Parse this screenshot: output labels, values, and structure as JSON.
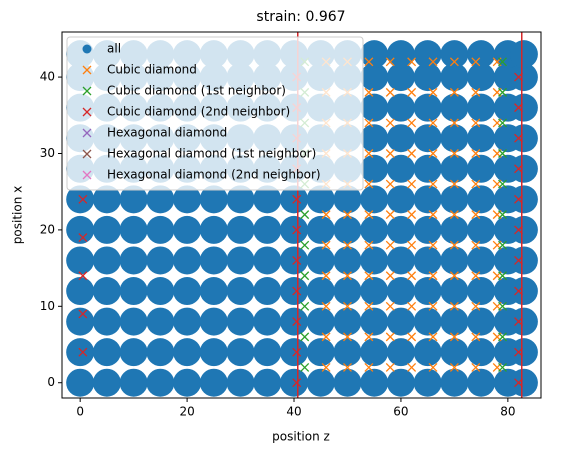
{
  "chart_data": {
    "type": "scatter",
    "title": "strain: 0.967",
    "x_label": "position z",
    "y_label": "position x",
    "xlim": [
      -3.4,
      86.2
    ],
    "ylim": [
      -2.0,
      45.9
    ],
    "xticks": [
      0,
      20,
      40,
      60,
      80
    ],
    "yticks": [
      0,
      10,
      20,
      30,
      40
    ],
    "legend": "upper left",
    "vlines": [
      40.7,
      82.6
    ],
    "vline_color": "#d62728",
    "series": [
      {
        "name": "all",
        "color": "#1f77b4",
        "marker": "o",
        "x": [
          0,
          5,
          10,
          15,
          20,
          25,
          30,
          35,
          40,
          45,
          50,
          55,
          60,
          65,
          70,
          75,
          80,
          83,
          0,
          5,
          10,
          15,
          20,
          25,
          30,
          35,
          40,
          45,
          50,
          55,
          60,
          65,
          70,
          75,
          80,
          83,
          0,
          5,
          10,
          15,
          20,
          25,
          30,
          35,
          40,
          45,
          50,
          55,
          60,
          65,
          70,
          75,
          80,
          83,
          0,
          5,
          10,
          15,
          20,
          25,
          30,
          35,
          40,
          45,
          50,
          55,
          60,
          65,
          70,
          75,
          80,
          83,
          0,
          5,
          10,
          15,
          20,
          25,
          30,
          35,
          40,
          45,
          50,
          55,
          60,
          65,
          70,
          75,
          80,
          83,
          0,
          5,
          10,
          15,
          20,
          25,
          30,
          35,
          40,
          45,
          50,
          55,
          60,
          65,
          70,
          75,
          80,
          83,
          0,
          5,
          10,
          15,
          20,
          25,
          30,
          35,
          40,
          45,
          50,
          55,
          60,
          65,
          70,
          75,
          80,
          83,
          0,
          5,
          10,
          15,
          20,
          25,
          30,
          35,
          40,
          45,
          50,
          55,
          60,
          65,
          70,
          75,
          80,
          83,
          0,
          5,
          10,
          15,
          20,
          25,
          30,
          35,
          40,
          45,
          50,
          55,
          60,
          65,
          70,
          75,
          80,
          83,
          0,
          5,
          10,
          15,
          20,
          25,
          30,
          35,
          40,
          45,
          50,
          55,
          60,
          65,
          70,
          75,
          80,
          83,
          0,
          5,
          10,
          15,
          20,
          25,
          30,
          35,
          40,
          45,
          50,
          55,
          60,
          65,
          70,
          75,
          80,
          83,
          0,
          5,
          10,
          15,
          20,
          25,
          30,
          35,
          40,
          45,
          50,
          55,
          60,
          65,
          70,
          75,
          80,
          83
        ],
        "y": [
          0,
          0,
          0,
          0,
          0,
          0,
          0,
          0,
          0,
          0,
          0,
          0,
          0,
          0,
          0,
          0,
          0,
          0,
          4,
          4,
          4,
          4,
          4,
          4,
          4,
          4,
          4,
          4,
          4,
          4,
          4,
          4,
          4,
          4,
          4,
          4,
          8,
          8,
          8,
          8,
          8,
          8,
          8,
          8,
          8,
          8,
          8,
          8,
          8,
          8,
          8,
          8,
          8,
          8,
          12,
          12,
          12,
          12,
          12,
          12,
          12,
          12,
          12,
          12,
          12,
          12,
          12,
          12,
          12,
          12,
          12,
          12,
          16,
          16,
          16,
          16,
          16,
          16,
          16,
          16,
          16,
          16,
          16,
          16,
          16,
          16,
          16,
          16,
          16,
          16,
          20,
          20,
          20,
          20,
          20,
          20,
          20,
          20,
          20,
          20,
          20,
          20,
          20,
          20,
          20,
          20,
          20,
          20,
          24,
          24,
          24,
          24,
          24,
          24,
          24,
          24,
          24,
          24,
          24,
          24,
          24,
          24,
          24,
          24,
          24,
          24,
          28,
          28,
          28,
          28,
          28,
          28,
          28,
          28,
          28,
          28,
          28,
          28,
          28,
          28,
          28,
          28,
          28,
          28,
          32,
          32,
          32,
          32,
          32,
          32,
          32,
          32,
          32,
          32,
          32,
          32,
          32,
          32,
          32,
          32,
          32,
          32,
          36,
          36,
          36,
          36,
          36,
          36,
          36,
          36,
          36,
          36,
          36,
          36,
          36,
          36,
          36,
          36,
          36,
          36,
          40,
          40,
          40,
          40,
          40,
          40,
          40,
          40,
          40,
          40,
          40,
          40,
          40,
          40,
          40,
          40,
          40,
          40,
          43,
          43,
          43,
          43,
          43,
          43,
          43,
          43,
          43,
          43,
          43,
          43,
          43,
          43,
          43,
          43,
          43,
          43
        ]
      },
      {
        "name": "Cubic diamond",
        "color": "#ff7f0e",
        "marker": "x",
        "x": [
          46,
          50,
          54,
          58,
          62,
          66,
          70,
          74,
          78,
          46,
          50,
          54,
          58,
          62,
          66,
          70,
          74,
          78,
          46,
          50,
          54,
          58,
          62,
          66,
          70,
          74,
          78,
          46,
          50,
          54,
          58,
          62,
          66,
          70,
          74,
          78,
          46,
          50,
          54,
          58,
          62,
          66,
          70,
          74,
          78,
          46,
          50,
          54,
          58,
          62,
          66,
          70,
          74,
          78,
          46,
          50,
          54,
          58,
          62,
          66,
          70,
          74,
          78,
          46,
          50,
          54,
          58,
          62,
          66,
          70,
          74,
          78,
          46,
          50,
          54,
          58,
          62,
          66,
          70,
          74,
          78,
          46,
          50,
          54,
          58,
          62,
          66,
          70,
          74,
          78,
          46,
          50,
          54,
          58,
          62,
          66,
          70,
          74,
          78
        ],
        "y": [
          2,
          2,
          2,
          2,
          2,
          2,
          2,
          2,
          2,
          6,
          6,
          6,
          6,
          6,
          6,
          6,
          6,
          6,
          10,
          10,
          10,
          10,
          10,
          10,
          10,
          10,
          10,
          14,
          14,
          14,
          14,
          14,
          14,
          14,
          14,
          14,
          18,
          18,
          18,
          18,
          18,
          18,
          18,
          18,
          18,
          22,
          22,
          22,
          22,
          22,
          22,
          22,
          22,
          22,
          26,
          26,
          26,
          26,
          26,
          26,
          26,
          26,
          26,
          30,
          30,
          30,
          30,
          30,
          30,
          30,
          30,
          30,
          34,
          34,
          34,
          34,
          34,
          34,
          34,
          34,
          34,
          38,
          38,
          38,
          38,
          38,
          38,
          38,
          38,
          38,
          42,
          42,
          42,
          42,
          42,
          42,
          42,
          42,
          42
        ]
      },
      {
        "name": "Cubic diamond (1st neighbor)",
        "color": "#2ca02c",
        "marker": "x",
        "x": [
          42,
          79,
          42,
          79,
          42,
          79,
          42,
          79,
          42,
          79,
          42,
          79,
          42,
          79,
          42,
          79,
          42,
          79,
          42,
          79,
          42,
          79
        ],
        "y": [
          2,
          2,
          6,
          6,
          10,
          10,
          14,
          14,
          18,
          18,
          22,
          22,
          26,
          26,
          30,
          30,
          34,
          34,
          38,
          38,
          42,
          42
        ]
      },
      {
        "name": "Cubic diamond (2nd neighbor)",
        "color": "#d62728",
        "marker": "x",
        "x": [
          40.5,
          82,
          40.5,
          82,
          40.5,
          82,
          40.5,
          82,
          40.5,
          82,
          40.5,
          82,
          40.5,
          82,
          40.5,
          82,
          40.5,
          82,
          40.5,
          82,
          40.5,
          82,
          0.5,
          0.5,
          0.5,
          0.5,
          0.5
        ],
        "y": [
          0,
          0,
          4,
          4,
          8,
          8,
          12,
          12,
          16,
          16,
          20,
          20,
          24,
          24,
          28,
          28,
          32,
          32,
          36,
          36,
          40,
          40,
          4,
          9,
          14,
          19,
          24
        ]
      },
      {
        "name": "Hexagonal diamond",
        "color": "#9467bd",
        "marker": "x",
        "x": [],
        "y": []
      },
      {
        "name": "Hexagonal diamond (1st neighbor)",
        "color": "#8c564b",
        "marker": "x",
        "x": [],
        "y": []
      },
      {
        "name": "Hexagonal diamond (2nd neighbor)",
        "color": "#e377c2",
        "marker": "x",
        "x": [],
        "y": []
      }
    ]
  }
}
